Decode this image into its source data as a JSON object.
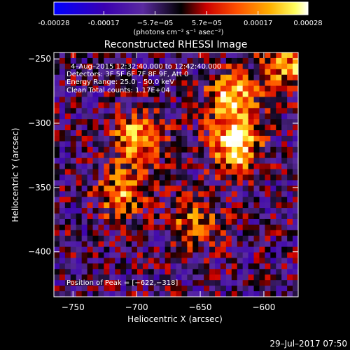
{
  "colorbar": {
    "tick_labels": [
      "-0.00028",
      "-0.00017",
      "−5.7e−05",
      "5.7e−05",
      "0.00017",
      "0.00028"
    ],
    "tick_values": [
      -0.00028,
      -0.00017,
      -5.7e-05,
      5.7e-05,
      0.00017,
      0.00028
    ],
    "units": "(photons cm⁻² s⁻¹ asec⁻²)",
    "range": [
      -0.00028,
      0.00028
    ]
  },
  "annotations": [
    "4–Aug–2015 12:32:40.000 to 12:42:40.000",
    "Detectors: 3F 5F 6F 7F 8F 9F, Att 0",
    "Energy Range: 25.0 – 50.0 keV",
    "Clean    Total counts: 1.17E+04"
  ],
  "peak_label": "Position of Peak = [−622,−318]",
  "footer_timestamp": "29–Jul–2017 07:50",
  "chart_data": {
    "type": "heatmap",
    "title": "Reconstructed RHESSI Image",
    "xlabel": "Heliocentric X (arcsec)",
    "ylabel": "Heliocentric Y (arcsec)",
    "xlim": [
      -765,
      -573
    ],
    "ylim": [
      -435,
      -245
    ],
    "x_ticks": [
      -750,
      -700,
      -650,
      -600
    ],
    "y_ticks": [
      -250,
      -300,
      -350,
      -400
    ],
    "x_tick_labels": [
      "−750",
      "−700",
      "−650",
      "−600"
    ],
    "y_tick_labels": [
      "−250",
      "−300",
      "−350",
      "−400"
    ],
    "colormap": "red-temperature",
    "colormap_stops": [
      "#0000ff",
      "#3a00b0",
      "#5a2aa0",
      "#000000",
      "#cc0000",
      "#ff5000",
      "#ffb000",
      "#ffff60",
      "#ffffff"
    ],
    "sources": [
      {
        "x": -622,
        "y": -318,
        "intensity": 1.0
      },
      {
        "x": -625,
        "y": -280,
        "intensity": 0.85
      },
      {
        "x": -700,
        "y": -312,
        "intensity": 0.8
      },
      {
        "x": -712,
        "y": -355,
        "intensity": 0.65
      },
      {
        "x": -580,
        "y": -255,
        "intensity": 0.7
      },
      {
        "x": -655,
        "y": -378,
        "intensity": 0.55
      }
    ],
    "peak": [
      -622,
      -318
    ]
  }
}
